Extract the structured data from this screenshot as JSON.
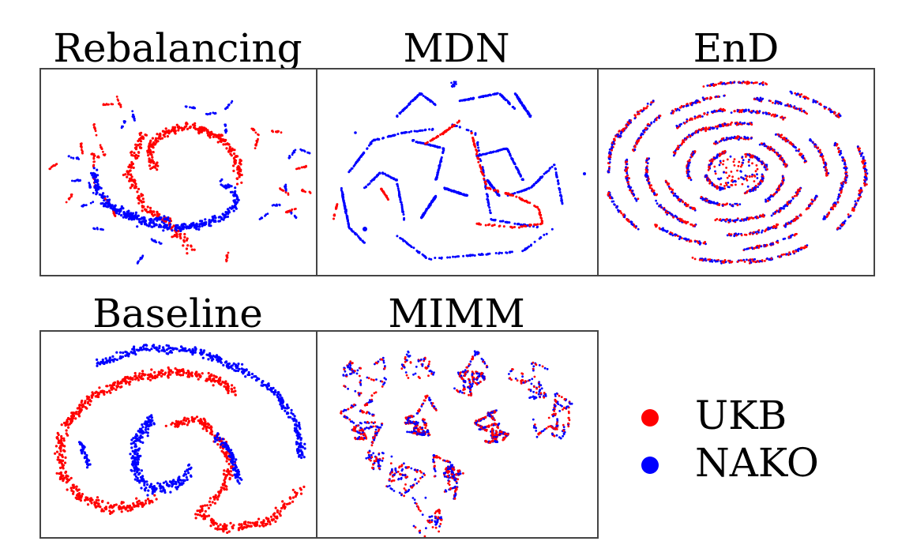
{
  "colors": {
    "UKB": "#ff0000",
    "NAKO": "#0000ff"
  },
  "chart_data": [
    {
      "type": "scatter",
      "title": "Rebalancing",
      "xlabel": "",
      "ylabel": "",
      "grid": false,
      "pattern": "rebalancing"
    },
    {
      "type": "scatter",
      "title": "MDN",
      "xlabel": "",
      "ylabel": "",
      "grid": false,
      "pattern": "mdn"
    },
    {
      "type": "scatter",
      "title": "EnD",
      "xlabel": "",
      "ylabel": "",
      "grid": false,
      "pattern": "end"
    },
    {
      "type": "scatter",
      "title": "Baseline",
      "xlabel": "",
      "ylabel": "",
      "grid": false,
      "pattern": "baseline"
    },
    {
      "type": "scatter",
      "title": "MIMM",
      "xlabel": "",
      "ylabel": "",
      "grid": false,
      "pattern": "mimm"
    }
  ],
  "legend": {
    "placement": "bottom-right",
    "items": [
      {
        "label": "UKB",
        "color": "#ff0000"
      },
      {
        "label": "NAKO",
        "color": "#0000ff"
      }
    ]
  }
}
